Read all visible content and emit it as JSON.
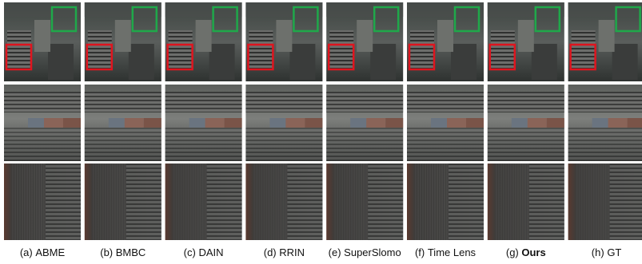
{
  "figure": {
    "captions": [
      {
        "label": "(a)",
        "name": "ABME",
        "bold": false
      },
      {
        "label": "(b)",
        "name": "BMBC",
        "bold": false
      },
      {
        "label": "(c)",
        "name": "DAIN",
        "bold": false
      },
      {
        "label": "(d)",
        "name": "RRIN",
        "bold": false
      },
      {
        "label": "(e)",
        "name": "SuperSlomo",
        "bold": false
      },
      {
        "label": "(f)",
        "name": "Time Lens",
        "bold": false
      },
      {
        "label": "(g)",
        "name": "Ours",
        "bold": true
      },
      {
        "label": "(h)",
        "name": "GT",
        "bold": false
      }
    ]
  }
}
